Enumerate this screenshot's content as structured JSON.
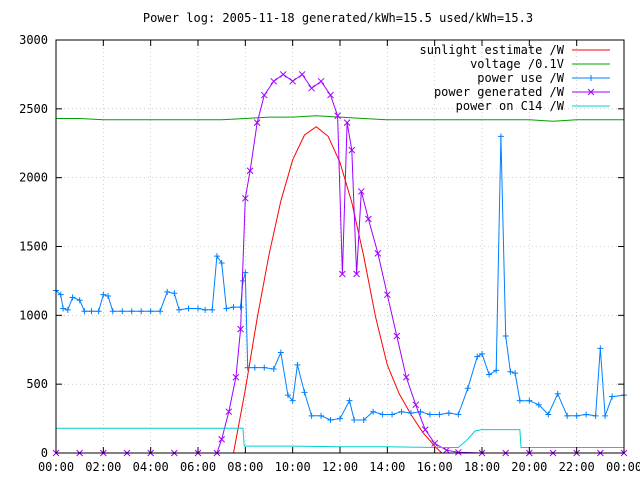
{
  "chart_data": {
    "type": "line",
    "title": "Power log: 2005-11-18 generated/kWh=15.5 used/kWh=15.3",
    "xlabel": "",
    "ylabel": "",
    "xlim": [
      0,
      24
    ],
    "ylim": [
      0,
      3000
    ],
    "x_ticks": [
      "00:00",
      "02:00",
      "04:00",
      "06:00",
      "08:00",
      "10:00",
      "12:00",
      "14:00",
      "16:00",
      "18:00",
      "20:00",
      "22:00",
      "00:00"
    ],
    "y_ticks": [
      "0",
      "500",
      "1000",
      "1500",
      "2000",
      "2500",
      "3000"
    ],
    "grid": true,
    "legend_position": "top-right",
    "series": [
      {
        "name": "sunlight estimate /W",
        "color": "#ff0000",
        "marker": "none",
        "points": [
          [
            7.5,
            0
          ],
          [
            8.0,
            460
          ],
          [
            8.5,
            980
          ],
          [
            9.0,
            1440
          ],
          [
            9.5,
            1830
          ],
          [
            10.0,
            2130
          ],
          [
            10.5,
            2310
          ],
          [
            11.0,
            2370
          ],
          [
            11.5,
            2300
          ],
          [
            12.0,
            2110
          ],
          [
            12.5,
            1820
          ],
          [
            13.0,
            1430
          ],
          [
            13.5,
            990
          ],
          [
            14.0,
            640
          ],
          [
            14.5,
            430
          ],
          [
            15.0,
            280
          ],
          [
            15.5,
            150
          ],
          [
            16.0,
            50
          ],
          [
            16.3,
            0
          ]
        ]
      },
      {
        "name": "voltage /0.1V",
        "color": "#00a000",
        "marker": "none",
        "points": [
          [
            0,
            2430
          ],
          [
            1,
            2430
          ],
          [
            2,
            2420
          ],
          [
            3,
            2420
          ],
          [
            4,
            2420
          ],
          [
            5,
            2420
          ],
          [
            6,
            2420
          ],
          [
            7,
            2420
          ],
          [
            8,
            2430
          ],
          [
            9,
            2440
          ],
          [
            10,
            2440
          ],
          [
            11,
            2450
          ],
          [
            12,
            2440
          ],
          [
            13,
            2430
          ],
          [
            14,
            2420
          ],
          [
            15,
            2420
          ],
          [
            16,
            2420
          ],
          [
            17,
            2420
          ],
          [
            18,
            2420
          ],
          [
            19,
            2420
          ],
          [
            20,
            2420
          ],
          [
            21,
            2410
          ],
          [
            22,
            2420
          ],
          [
            23,
            2420
          ],
          [
            24,
            2420
          ]
        ]
      },
      {
        "name": "power use /W",
        "color": "#0080ff",
        "marker": "plus",
        "points": [
          [
            0.0,
            1180
          ],
          [
            0.2,
            1150
          ],
          [
            0.3,
            1050
          ],
          [
            0.5,
            1040
          ],
          [
            0.7,
            1130
          ],
          [
            1.0,
            1110
          ],
          [
            1.2,
            1030
          ],
          [
            1.5,
            1030
          ],
          [
            1.8,
            1030
          ],
          [
            2.0,
            1150
          ],
          [
            2.2,
            1140
          ],
          [
            2.4,
            1030
          ],
          [
            2.8,
            1030
          ],
          [
            3.2,
            1030
          ],
          [
            3.6,
            1030
          ],
          [
            4.0,
            1030
          ],
          [
            4.4,
            1030
          ],
          [
            4.7,
            1170
          ],
          [
            5.0,
            1160
          ],
          [
            5.2,
            1040
          ],
          [
            5.6,
            1050
          ],
          [
            6.0,
            1050
          ],
          [
            6.3,
            1040
          ],
          [
            6.6,
            1040
          ],
          [
            6.8,
            1430
          ],
          [
            7.0,
            1380
          ],
          [
            7.2,
            1050
          ],
          [
            7.5,
            1060
          ],
          [
            7.8,
            1060
          ],
          [
            7.9,
            1250
          ],
          [
            8.0,
            1310
          ],
          [
            8.1,
            620
          ],
          [
            8.4,
            620
          ],
          [
            8.8,
            620
          ],
          [
            9.2,
            610
          ],
          [
            9.5,
            730
          ],
          [
            9.8,
            420
          ],
          [
            10.0,
            380
          ],
          [
            10.2,
            640
          ],
          [
            10.5,
            440
          ],
          [
            10.8,
            270
          ],
          [
            11.2,
            270
          ],
          [
            11.6,
            240
          ],
          [
            12.0,
            250
          ],
          [
            12.4,
            380
          ],
          [
            12.6,
            240
          ],
          [
            13.0,
            240
          ],
          [
            13.4,
            300
          ],
          [
            13.8,
            280
          ],
          [
            14.2,
            280
          ],
          [
            14.6,
            300
          ],
          [
            15.0,
            290
          ],
          [
            15.4,
            300
          ],
          [
            15.8,
            280
          ],
          [
            16.2,
            280
          ],
          [
            16.6,
            290
          ],
          [
            17.0,
            280
          ],
          [
            17.4,
            470
          ],
          [
            17.8,
            700
          ],
          [
            18.0,
            720
          ],
          [
            18.3,
            570
          ],
          [
            18.6,
            600
          ],
          [
            18.8,
            2300
          ],
          [
            19.0,
            850
          ],
          [
            19.2,
            590
          ],
          [
            19.4,
            580
          ],
          [
            19.6,
            380
          ],
          [
            20.0,
            380
          ],
          [
            20.4,
            350
          ],
          [
            20.8,
            280
          ],
          [
            21.2,
            430
          ],
          [
            21.6,
            270
          ],
          [
            22.0,
            270
          ],
          [
            22.4,
            280
          ],
          [
            22.8,
            270
          ],
          [
            23.0,
            760
          ],
          [
            23.2,
            270
          ],
          [
            23.5,
            410
          ],
          [
            24.0,
            420
          ]
        ]
      },
      {
        "name": "power generated /W",
        "color": "#a000ff",
        "marker": "x",
        "points": [
          [
            0,
            0
          ],
          [
            1,
            0
          ],
          [
            2,
            0
          ],
          [
            3,
            0
          ],
          [
            4,
            0
          ],
          [
            5,
            0
          ],
          [
            6,
            0
          ],
          [
            6.8,
            0
          ],
          [
            7.0,
            100
          ],
          [
            7.3,
            300
          ],
          [
            7.6,
            550
          ],
          [
            7.8,
            900
          ],
          [
            8.0,
            1850
          ],
          [
            8.2,
            2050
          ],
          [
            8.5,
            2400
          ],
          [
            8.8,
            2600
          ],
          [
            9.2,
            2700
          ],
          [
            9.6,
            2750
          ],
          [
            10.0,
            2700
          ],
          [
            10.4,
            2750
          ],
          [
            10.8,
            2650
          ],
          [
            11.2,
            2700
          ],
          [
            11.6,
            2600
          ],
          [
            11.9,
            2450
          ],
          [
            12.1,
            1300
          ],
          [
            12.3,
            2400
          ],
          [
            12.5,
            2200
          ],
          [
            12.7,
            1300
          ],
          [
            12.9,
            1900
          ],
          [
            13.2,
            1700
          ],
          [
            13.6,
            1450
          ],
          [
            14.0,
            1150
          ],
          [
            14.4,
            850
          ],
          [
            14.8,
            550
          ],
          [
            15.2,
            350
          ],
          [
            15.6,
            170
          ],
          [
            16.0,
            70
          ],
          [
            16.5,
            20
          ],
          [
            17.0,
            5
          ],
          [
            18,
            0
          ],
          [
            19,
            0
          ],
          [
            20,
            0
          ],
          [
            21,
            0
          ],
          [
            22,
            0
          ],
          [
            23,
            0
          ],
          [
            24,
            0
          ]
        ]
      },
      {
        "name": "power on C14 /W",
        "color": "#00d0d0",
        "marker": "none",
        "points": [
          [
            0,
            180
          ],
          [
            7.9,
            180
          ],
          [
            7.95,
            50
          ],
          [
            10,
            50
          ],
          [
            12,
            45
          ],
          [
            14,
            45
          ],
          [
            16,
            40
          ],
          [
            17.0,
            40
          ],
          [
            17.4,
            100
          ],
          [
            17.7,
            160
          ],
          [
            18.0,
            170
          ],
          [
            19.6,
            170
          ],
          [
            19.65,
            40
          ],
          [
            21,
            40
          ],
          [
            24,
            40
          ]
        ]
      }
    ]
  }
}
